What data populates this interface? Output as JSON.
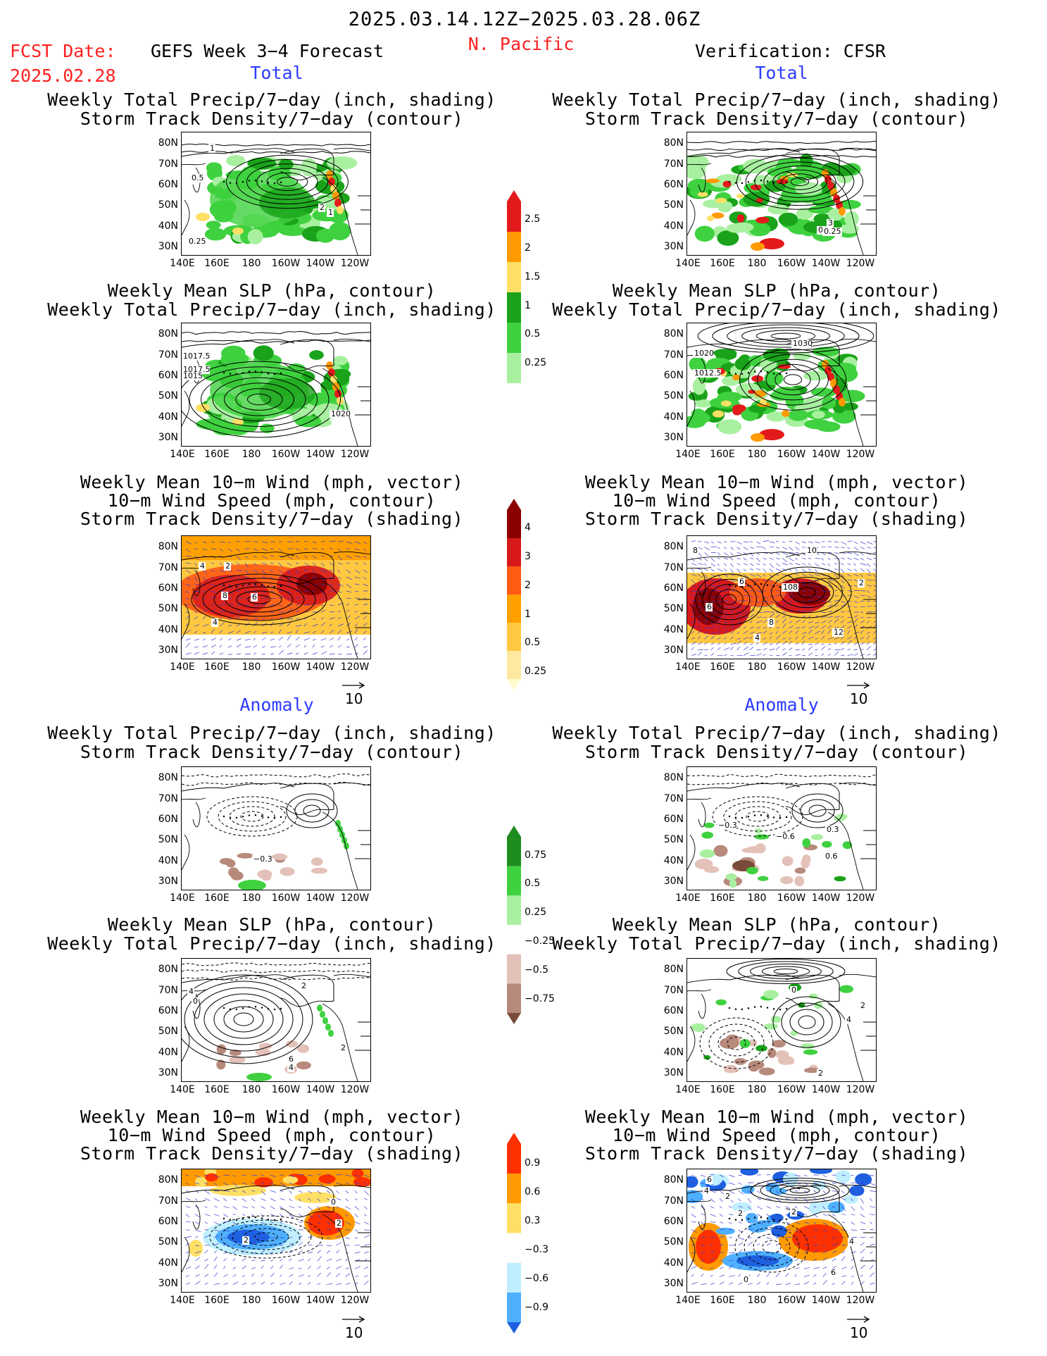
{
  "header": {
    "date_range": "2025.03.14.12Z−2025.03.28.06Z",
    "fcst_label": "FCST Date:",
    "fcst_date": "2025.02.28",
    "forecast_title": "GEFS Week 3−4 Forecast",
    "region": "N. Pacific",
    "verification": "Verification: CFSR"
  },
  "sections": {
    "total": "Total",
    "anomaly": "Anomaly"
  },
  "axes": {
    "lat_labels": [
      "80N",
      "70N",
      "60N",
      "50N",
      "40N",
      "30N"
    ],
    "lon_labels": [
      "140E",
      "160E",
      "180",
      "160W",
      "140W",
      "120W"
    ]
  },
  "titles": {
    "precip_storm": [
      "Weekly Total Precip/7−day (inch, shading)",
      "Storm Track Density/7−day (contour)"
    ],
    "slp_precip": [
      "Weekly Mean SLP (hPa, contour)",
      "Weekly Total Precip/7−day (inch, shading)"
    ],
    "wind_storm": [
      "Weekly Mean 10−m Wind (mph, vector)",
      "10−m Wind Speed (mph, contour)",
      "Storm Track Density/7−day (shading)"
    ]
  },
  "vector_ref": "10",
  "colorbars": {
    "precip_total": {
      "labels": [
        "2.5",
        "2",
        "1.5",
        "1",
        "0.5",
        "0.25"
      ],
      "colors": [
        "#e31a1c",
        "#ff9a00",
        "#ffe066",
        "#1aa31a",
        "#3fd13f",
        "#a8f0a0"
      ]
    },
    "storm_total": {
      "labels": [
        "4",
        "3",
        "2",
        "1",
        "0.5",
        "0.25"
      ],
      "colors": [
        "#8b0000",
        "#d7191c",
        "#ff5a14",
        "#ffa000",
        "#ffc840",
        "#ffe9a0",
        "#fffbd0"
      ]
    },
    "precip_anom": {
      "labels": [
        "0.75",
        "0.5",
        "0.25",
        "−0.25",
        "−0.5",
        "−0.75"
      ],
      "colors": [
        "#1e8c1e",
        "#3fd13f",
        "#a8f0a0",
        "#ffffff",
        "#e3c1b8",
        "#b78a7c",
        "#7a4a3a"
      ]
    },
    "storm_anom": {
      "labels": [
        "0.9",
        "0.6",
        "0.3",
        "−0.3",
        "−0.6",
        "−0.9"
      ],
      "colors": [
        "#ff3000",
        "#ff9a00",
        "#ffe066",
        "#ffffff",
        "#bfefff",
        "#4fb0ff",
        "#1e60e0"
      ]
    }
  },
  "panel_labels": {
    "fc_tot_precip": [
      "1",
      "0.5",
      "0.25",
      "2",
      "1"
    ],
    "ob_tot_precip": [
      "0.5",
      "0.25",
      "3"
    ],
    "fc_tot_slp": [
      "1017.5",
      "1017.5",
      "1015",
      "1020"
    ],
    "ob_tot_slp": [
      "1030",
      "1020",
      "1012.5"
    ],
    "fc_tot_wind": [
      "2",
      "4",
      "8",
      "6",
      "4"
    ],
    "ob_tot_wind": [
      "8",
      "10",
      "6",
      "8",
      "10",
      "6",
      "8",
      "2",
      "4",
      "12"
    ],
    "fc_an_precip": [
      "−0.3"
    ],
    "ob_an_precip": [
      "−0.3",
      "−0.6",
      "0.3",
      "0.6"
    ],
    "fc_an_slp": [
      "4",
      "2",
      "0",
      "2",
      "6",
      "4"
    ],
    "ob_an_slp": [
      "0",
      "2",
      "4",
      "2"
    ],
    "fc_an_wind": [
      "2",
      "0",
      "2"
    ],
    "ob_an_wind": [
      "6",
      "4",
      "2",
      "2",
      "4",
      "2",
      "0",
      "6"
    ]
  },
  "colors": {
    "red_text": "#ff2020",
    "blue_text": "#2d3cff",
    "vector_color": "#3a3ad0",
    "land_outline": "#000000"
  }
}
